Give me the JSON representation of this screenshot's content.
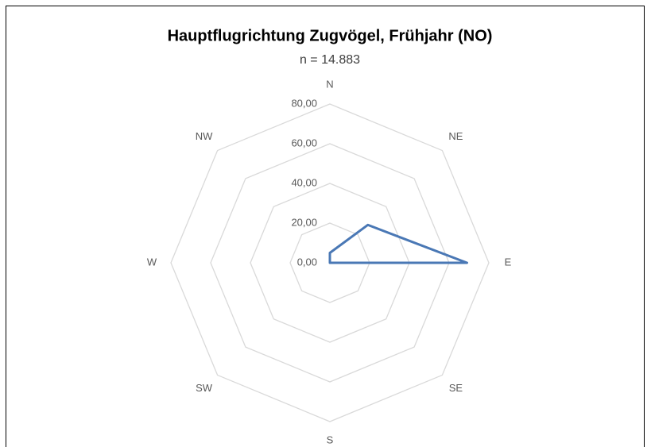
{
  "chart_data": {
    "type": "radar",
    "title": "Hauptflugrichtung Zugvögel, Frühjahr (NO)",
    "subtitle": "n = 14.883",
    "categories": [
      "N",
      "NE",
      "E",
      "SE",
      "S",
      "SW",
      "W",
      "NW"
    ],
    "series": [
      {
        "name": "Hauptflugrichtung",
        "color": "#4a78b5",
        "values": [
          5,
          27,
          69,
          0,
          0,
          0,
          0,
          0
        ]
      }
    ],
    "ylim": [
      0,
      80
    ],
    "yticks": [
      {
        "value": 0,
        "label": "0,00"
      },
      {
        "value": 20,
        "label": "20,00"
      },
      {
        "value": 40,
        "label": "40,00"
      },
      {
        "value": 60,
        "label": "60,00"
      },
      {
        "value": 80,
        "label": "80,00"
      }
    ],
    "grid": true
  }
}
